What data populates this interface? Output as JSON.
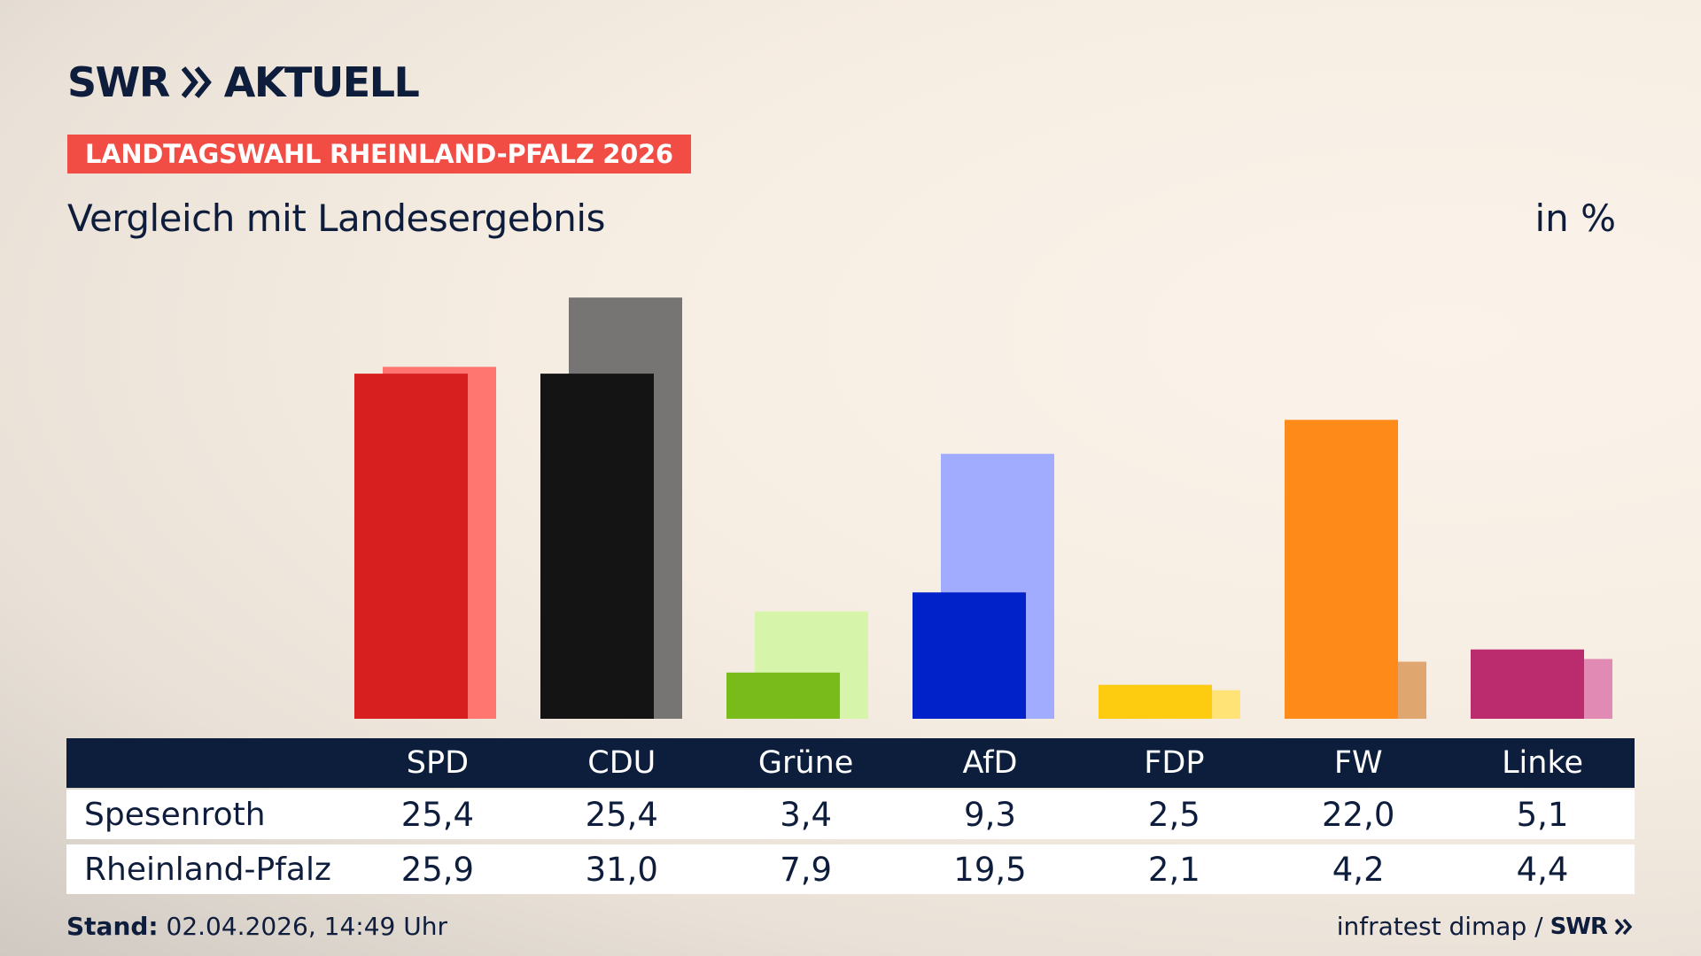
{
  "brand": {
    "logo_text": "SWR",
    "logo_suffix": "AKTUELL",
    "accent_color": "#f14d45",
    "navy_color": "#0d1e3d"
  },
  "header": {
    "badge": "LANDTAGSWAHL RHEINLAND-PFALZ 2026",
    "subtitle": "Vergleich mit Landesergebnis",
    "unit": "in %"
  },
  "chart_data": {
    "type": "bar",
    "categories": [
      "SPD",
      "CDU",
      "Grüne",
      "AfD",
      "FDP",
      "FW",
      "Linke"
    ],
    "series": [
      {
        "name": "Spesenroth",
        "values": [
          25.4,
          25.4,
          3.4,
          9.3,
          2.5,
          22.0,
          5.1
        ],
        "labels": [
          "25,4",
          "25,4",
          "3,4",
          "9,3",
          "2,5",
          "22,0",
          "5,1"
        ],
        "colors": [
          "#d81f1f",
          "#141414",
          "#78bb1b",
          "#0022c8",
          "#fdcb10",
          "#fd8a19",
          "#bb2c6e"
        ]
      },
      {
        "name": "Rheinland-Pfalz",
        "values": [
          25.9,
          31.0,
          7.9,
          19.5,
          2.1,
          4.2,
          4.4
        ],
        "labels": [
          "25,9",
          "31,0",
          "7,9",
          "19,5",
          "2,1",
          "4,2",
          "4,4"
        ],
        "colors": [
          "#ff7670",
          "#767574",
          "#d7f5aa",
          "#a1acff",
          "#ffe377",
          "#e0a670",
          "#e08ab4"
        ]
      }
    ],
    "ylim": [
      0,
      31
    ],
    "grid": false,
    "legend": "table below"
  },
  "footer": {
    "stand_label": "Stand:",
    "stand_value": " 02.04.2026, 14:49 Uhr",
    "source": "infratest dimap /",
    "source_brand": "SWR"
  }
}
